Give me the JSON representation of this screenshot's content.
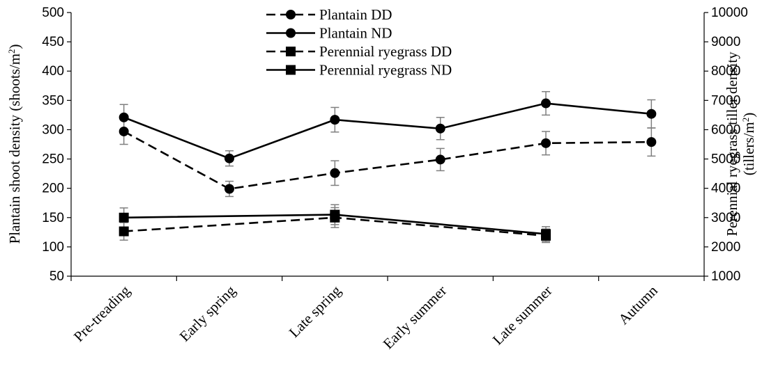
{
  "chart_data": {
    "type": "line",
    "categories": [
      "Pre-treading",
      "Early spring",
      "Late spring",
      "Early summer",
      "Late summer",
      "Autumn"
    ],
    "y_left": {
      "label_main": "Plantain shoot density (shoots/m",
      "label_sup": "2",
      "label_end": ")",
      "range": [
        50,
        500
      ],
      "ticks": [
        50,
        100,
        150,
        200,
        250,
        300,
        350,
        400,
        450,
        500
      ]
    },
    "y_right": {
      "label_line1": "Perennial ryegrass tiller density",
      "label_line2_main": "(tillers/m",
      "label_line2_sup": "2",
      "label_line2_end": ")",
      "range": [
        1000,
        10000
      ],
      "ticks": [
        1000,
        2000,
        3000,
        4000,
        5000,
        6000,
        7000,
        8000,
        9000,
        10000
      ]
    },
    "series": [
      {
        "name": "Plantain DD",
        "axis": "left",
        "style": "dashed",
        "marker": "circle",
        "values": [
          297,
          199,
          226,
          249,
          277,
          279
        ],
        "errors": [
          22,
          13,
          21,
          19,
          20,
          24
        ]
      },
      {
        "name": "Plantain ND",
        "axis": "left",
        "style": "solid",
        "marker": "circle",
        "values": [
          321,
          251,
          317,
          302,
          345,
          327
        ],
        "errors": [
          22,
          13,
          21,
          19,
          20,
          24
        ]
      },
      {
        "name": "Perennial ryegrass DD",
        "axis": "right",
        "style": "dashed",
        "marker": "square",
        "values": [
          2530,
          null,
          3000,
          null,
          2380,
          null
        ],
        "errors": [
          300,
          null,
          340,
          null,
          230,
          null
        ]
      },
      {
        "name": "Perennial ryegrass ND",
        "axis": "right",
        "style": "solid",
        "marker": "square",
        "values": [
          3000,
          null,
          3100,
          null,
          2440,
          null
        ],
        "errors": [
          330,
          null,
          340,
          null,
          250,
          null
        ]
      }
    ],
    "legend_position": "top-center",
    "grid": false,
    "colors": {
      "line": "#000000",
      "error_bar": "#7f7f7f"
    }
  }
}
